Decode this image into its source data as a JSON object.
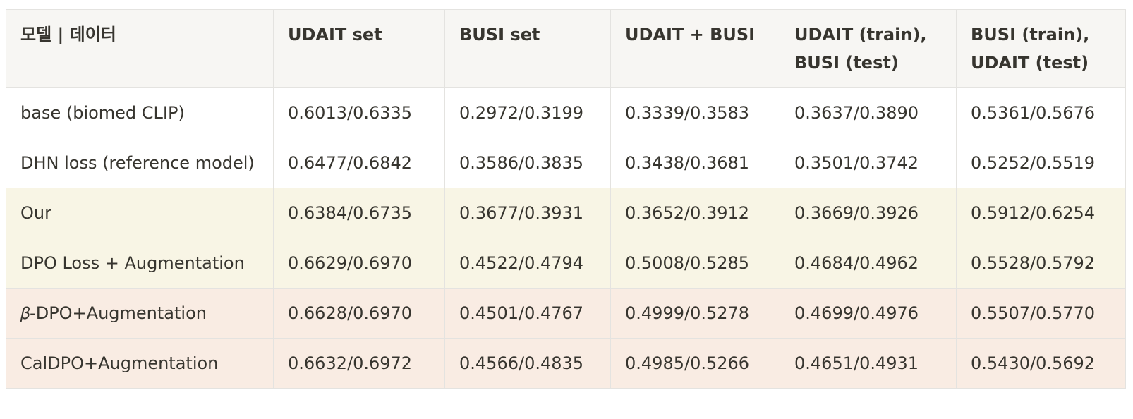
{
  "table": {
    "header": [
      "모델 | 데이터",
      "UDAIT set",
      "BUSI set",
      "UDAIT + BUSI",
      "UDAIT (train), BUSI (test)",
      "BUSI (train), UDAIT (test)"
    ],
    "rows": [
      [
        "base (biomed CLIP)",
        "0.6013/0.6335",
        "0.2972/0.3199",
        "0.3339/0.3583",
        "0.3637/0.3890",
        "0.5361/0.5676"
      ],
      [
        "DHN loss (reference model)",
        "0.6477/0.6842",
        "0.3586/0.3835",
        "0.3438/0.3681",
        "0.3501/0.3742",
        "0.5252/0.5519"
      ],
      [
        "Our",
        "0.6384/0.6735",
        "0.3677/0.3931",
        "0.3652/0.3912",
        "0.3669/0.3926",
        "0.5912/0.6254"
      ],
      [
        "DPO Loss + Augmentation",
        "0.6629/0.6970",
        "0.4522/0.4794",
        "0.5008/0.5285",
        "0.4684/0.4962",
        "0.5528/0.5792"
      ],
      [
        "𝛽-DPO+Augmentation",
        "0.6628/0.6970",
        "0.4501/0.4767",
        "0.4999/0.5278",
        "0.4699/0.4976",
        "0.5507/0.5770"
      ],
      [
        "CalDPO+Augmentation",
        "0.6632/0.6972",
        "0.4566/0.4835",
        "0.4985/0.5266",
        "0.4651/0.4931",
        "0.5430/0.5692"
      ]
    ]
  }
}
